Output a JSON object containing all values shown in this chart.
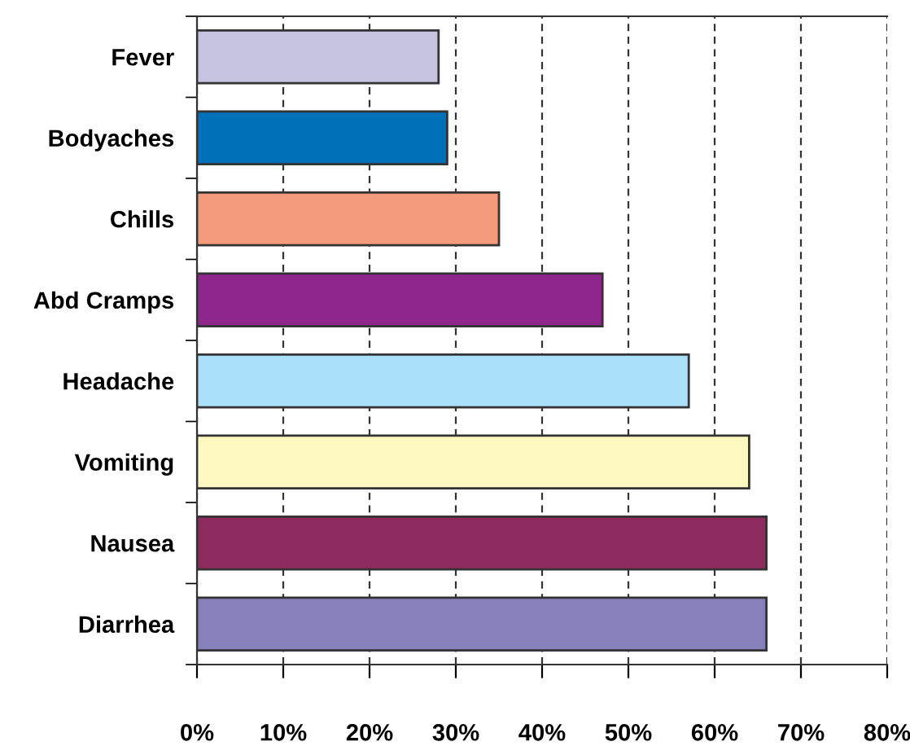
{
  "chart_data": {
    "type": "bar",
    "orientation": "horizontal",
    "categories": [
      "Fever",
      "Bodyaches",
      "Chills",
      "Abd Cramps",
      "Headache",
      "Vomiting",
      "Nausea",
      "Diarrhea"
    ],
    "values": [
      28,
      29,
      35,
      47,
      57,
      64,
      66,
      66
    ],
    "colors": [
      "#c6c3e1",
      "#0070b8",
      "#f49a7c",
      "#8f268e",
      "#a9dff8",
      "#fdf8c0",
      "#8f2a5e",
      "#8781bb"
    ],
    "xlim": [
      0,
      80
    ],
    "xticks": [
      {
        "value": 0,
        "label": "0%"
      },
      {
        "value": 10,
        "label": "10%"
      },
      {
        "value": 20,
        "label": "20%"
      },
      {
        "value": 30,
        "label": "30%"
      },
      {
        "value": 40,
        "label": "40%"
      },
      {
        "value": 50,
        "label": "50%"
      },
      {
        "value": 60,
        "label": "60%"
      },
      {
        "value": 70,
        "label": "70%"
      },
      {
        "value": 80,
        "label": "80%"
      }
    ],
    "grid": "x",
    "line_style": "dashed"
  }
}
